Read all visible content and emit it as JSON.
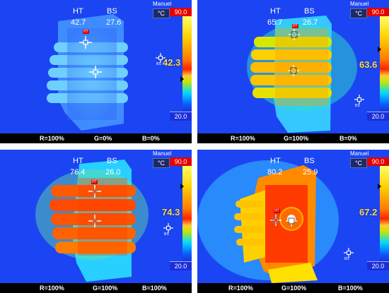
{
  "panels": [
    {
      "header": {
        "ht_label": "HT",
        "ht_value": "42.7",
        "bs_label": "BS",
        "bs_value": "27.6"
      },
      "mode": "Manuel",
      "unit": "°C",
      "scale_max": "90.0",
      "scale_min": "20.0",
      "big_value": "42.3",
      "ht_tag": "HT",
      "bs_tag": "BS",
      "footer": {
        "r": "R=100%",
        "g": "G=0%",
        "b": "B=0%"
      }
    },
    {
      "header": {
        "ht_label": "HT",
        "ht_value": "65.7",
        "bs_label": "BS",
        "bs_value": "26.7"
      },
      "mode": "Manuel",
      "unit": "°C",
      "scale_max": "90.0",
      "scale_min": "20.0",
      "big_value": "63.6",
      "ht_tag": "HT",
      "bs_tag": "BS",
      "footer": {
        "r": "R=100%",
        "g": "G=100%",
        "b": "B=0%"
      }
    },
    {
      "header": {
        "ht_label": "HT",
        "ht_value": "76.4",
        "bs_label": "BS",
        "bs_value": "26.0"
      },
      "mode": "Manuel",
      "unit": "°C",
      "scale_max": "90.0",
      "scale_min": "20.0",
      "big_value": "74.3",
      "ht_tag": "HT",
      "bs_tag": "BS",
      "footer": {
        "r": "R=100%",
        "g": "G=100%",
        "b": "B=100%"
      }
    },
    {
      "header": {
        "ht_label": "HT",
        "ht_value": "80.2",
        "bs_label": "BS",
        "bs_value": "25.9"
      },
      "mode": "Manuel",
      "unit": "°C",
      "scale_max": "90.0",
      "scale_min": "20.0",
      "big_value": "67.2",
      "ht_tag": "HT",
      "bs_tag": "BS",
      "footer": {
        "r": "R=100%",
        "g": "G=100%",
        "b": "B=100%"
      }
    }
  ],
  "colors": {
    "background_cold": "#1b45f2",
    "hot_orange": "#ff5a00",
    "warm_yellow": "#ffd400",
    "value_yellow": "#ffd84a",
    "scale_max_red": "#e60000",
    "scale_min_blue": "#1b2fd8"
  },
  "icons": [
    "crosshair-icon",
    "scale-marker-icon"
  ]
}
